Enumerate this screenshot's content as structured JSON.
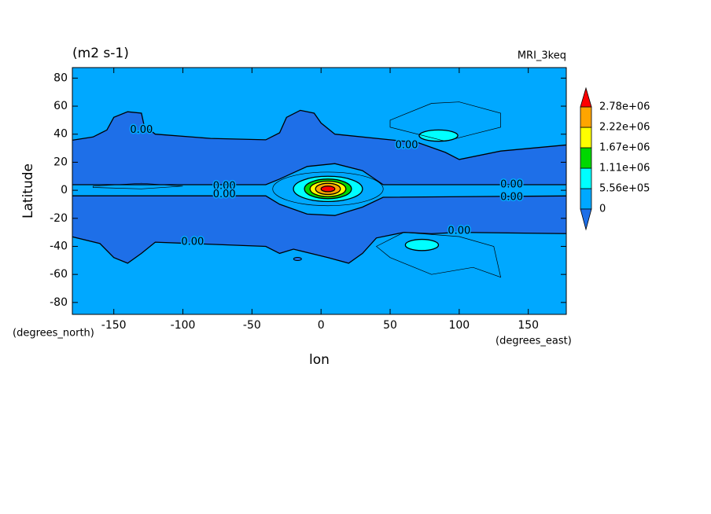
{
  "chart_data": {
    "type": "contour",
    "title": "MRI_3keq",
    "units": "(m2 s-1)",
    "x_label": "lon",
    "y_label": "Latitude",
    "x_unit": "(degrees_east)",
    "y_unit": "(degrees_north)",
    "xlim": [
      -180,
      177.5
    ],
    "ylim": [
      -88.5,
      87.5
    ],
    "xticks": [
      -150,
      -100,
      -50,
      0,
      50,
      100,
      150
    ],
    "yticks": [
      80,
      60,
      40,
      20,
      0,
      -20,
      -40,
      -60,
      -80
    ],
    "levels": [
      {
        "value": 0,
        "label": "0"
      },
      {
        "value": 556000,
        "label": "5.56e+05"
      },
      {
        "value": 1110000,
        "label": "1.11e+06"
      },
      {
        "value": 1670000,
        "label": "1.67e+06"
      },
      {
        "value": 2220000,
        "label": "2.22e+06"
      },
      {
        "value": 2780000,
        "label": "2.78e+06"
      }
    ],
    "colors": [
      "#1e6fe8",
      "#00a8ff",
      "#00ffff",
      "#00d800",
      "#ffff00",
      "#ffa500",
      "#ff0000"
    ],
    "contour_labels": [
      "0.00",
      "0.00",
      "0.00",
      "0.00",
      "0.00",
      "0.00",
      "0.00",
      "0.00"
    ]
  }
}
